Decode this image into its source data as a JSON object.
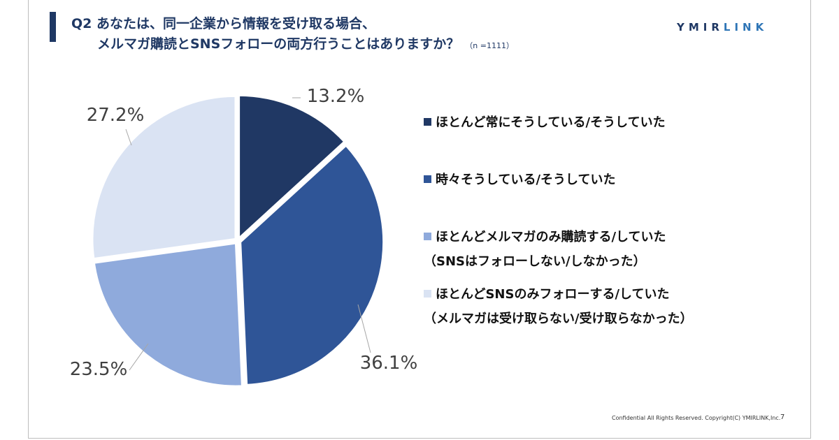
{
  "header": {
    "title_line1": "Q2 あなたは、同一企業から情報を受け取る場合、",
    "title_line2": "メルマガ購読とSNSフォローの両方行うことはありますか？",
    "sample_size": "（n =1111）",
    "brand_part1": "YMIR",
    "brand_part2": "LINK"
  },
  "chart_data": {
    "type": "pie",
    "categories": [
      "ほとんど常にそうしている/そうしていた",
      "時々そうしている/そうしていた",
      "ほとんどメルマガのみ購読する/していた（SNSはフォローしない/しなかった）",
      "ほとんどSNSのみフォローする/していた（メルマガは受け取らない/受け取らなかった）"
    ],
    "values": [
      13.2,
      36.1,
      23.5,
      27.2
    ],
    "value_labels": [
      "13.2%",
      "36.1%",
      "23.5%",
      "27.2%"
    ],
    "colors": [
      "#203864",
      "#2f5597",
      "#8faadc",
      "#dae3f3"
    ],
    "legend_placement": "right"
  },
  "legend": [
    {
      "line1": "ほとんど常にそうしている/そうしていた",
      "line2": "",
      "color": "#203864"
    },
    {
      "line1": "時々そうしている/そうしていた",
      "line2": "",
      "color": "#2f5597"
    },
    {
      "line1": "ほとんどメルマガのみ購読する/していた",
      "line2": "（SNSはフォローしない/しなかった）",
      "color": "#8faadc"
    },
    {
      "line1": "ほとんどSNSのみフォローする/していた",
      "line2": "（メルマガは受け取らない/受け取らなかった）",
      "color": "#dae3f3"
    }
  ],
  "footer": {
    "copyright": "Confidential All Rights Reserved. Copyright(C) YMIRLINK,Inc.",
    "page": "7"
  }
}
